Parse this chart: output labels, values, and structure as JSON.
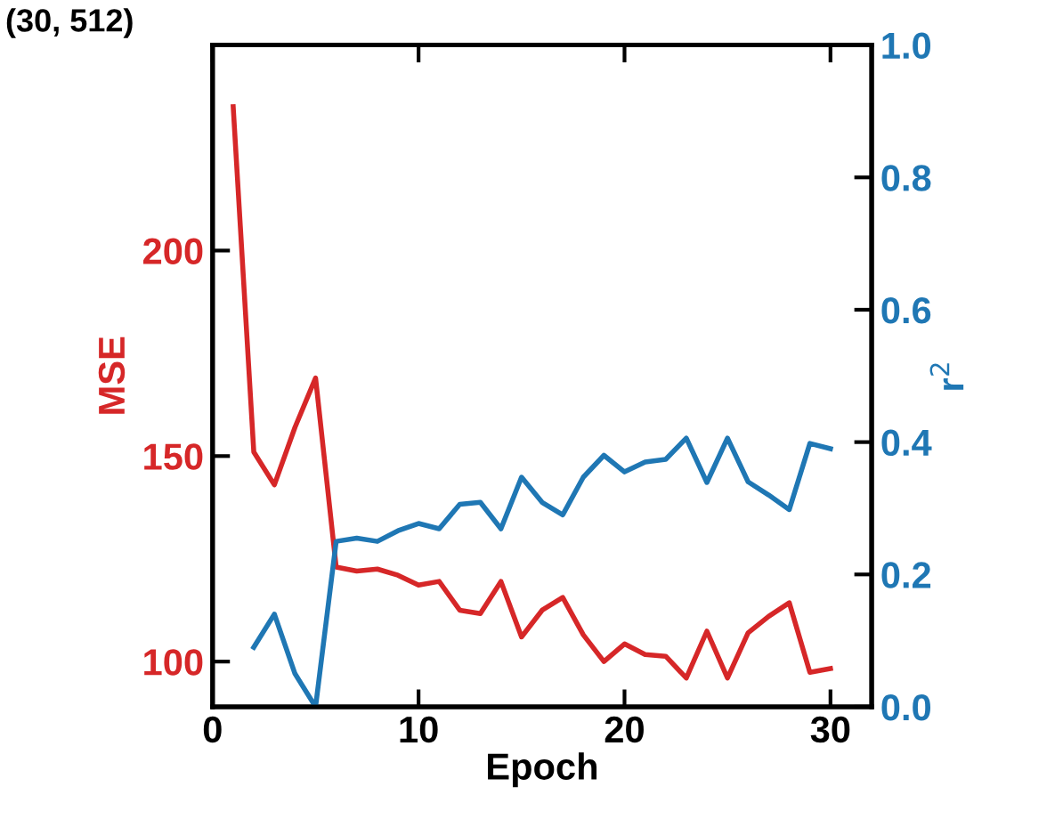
{
  "chart_data": {
    "type": "line",
    "xlabel": "Epoch",
    "ylabel": "MSE",
    "y2label": "r$^{2}$",
    "annotations": [
      "(30, 512)"
    ],
    "x": [
      1,
      2,
      3,
      4,
      5,
      6,
      7,
      8,
      9,
      10,
      11,
      12,
      13,
      14,
      15,
      16,
      17,
      18,
      19,
      20,
      21,
      22,
      23,
      24,
      25,
      26,
      27,
      28,
      29,
      30
    ],
    "series": [
      {
        "color": "#d62728",
        "values": [
          235,
          151,
          143,
          157,
          169,
          123,
          122,
          122.5,
          121,
          118.6,
          119.5,
          112.5,
          111.7,
          119.5,
          106,
          112.5,
          115.6,
          106.5,
          100,
          104.3,
          101.7,
          101.3,
          96,
          107.4,
          96,
          107,
          111,
          114.3,
          97.4,
          98.3
        ]
      },
      {
        "color": "#1f77b4",
        "axis": "y2",
        "values": [
          null,
          0.09,
          0.14,
          0.05,
          0.0,
          0.25,
          0.255,
          0.25,
          0.266,
          0.277,
          0.269,
          0.306,
          0.309,
          0.269,
          0.347,
          0.309,
          0.29,
          0.347,
          0.38,
          0.355,
          0.37,
          0.374,
          0.406,
          0.339,
          0.406,
          0.34,
          0.32,
          0.298,
          0.398,
          0.39
        ]
      }
    ],
    "xlim": [
      0,
      32
    ],
    "xticks": [
      0,
      10,
      20,
      30
    ],
    "ylim": [
      89,
      250
    ],
    "yticks": [
      100,
      150,
      200
    ],
    "y2lim": [
      0,
      1
    ],
    "y2ticks": [
      {
        "value": 0,
        "label": "0.0"
      },
      0.2,
      0.4,
      0.6,
      0.8,
      {
        "value": 1,
        "label": "1.0"
      }
    ],
    "grid": false,
    "marker": "none",
    "line_style": "solid"
  }
}
